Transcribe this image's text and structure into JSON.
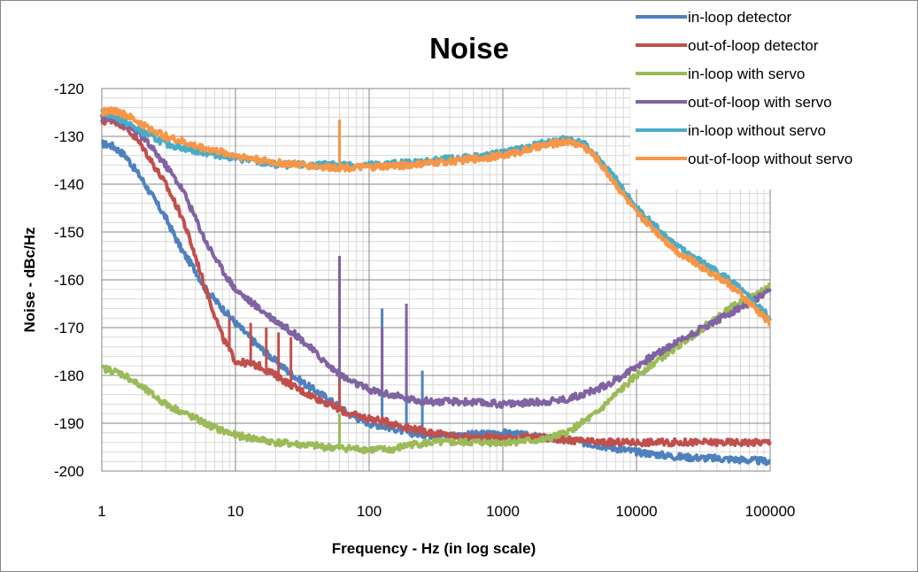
{
  "chart_data": {
    "type": "line",
    "title": "Noise",
    "xlabel": "Frequency - Hz (in log scale)",
    "ylabel": "Noise - dBc/Hz",
    "x_scale": "log",
    "xlim": [
      1,
      100000
    ],
    "ylim": [
      -200,
      -120
    ],
    "x_ticks": [
      1,
      10,
      100,
      1000,
      10000,
      100000
    ],
    "x_tick_labels": [
      "1",
      "10",
      "100",
      "1000",
      "10000",
      "100000"
    ],
    "y_ticks": [
      -200,
      -190,
      -180,
      -170,
      -160,
      -150,
      -140,
      -130,
      -120
    ],
    "y_tick_labels": [
      "-200",
      "-190",
      "-180",
      "-170",
      "-160",
      "-150",
      "-140",
      "-130",
      "-120"
    ],
    "grid": true,
    "minor_grid": true,
    "legend_position": "top-right",
    "series": [
      {
        "name": "in-loop detector",
        "color": "#4f81bd",
        "points": [
          [
            1,
            -131.5
          ],
          [
            1.2,
            -132
          ],
          [
            1.5,
            -134
          ],
          [
            2,
            -139
          ],
          [
            3,
            -147
          ],
          [
            4,
            -154
          ],
          [
            5,
            -158
          ],
          [
            6,
            -162
          ],
          [
            8,
            -166
          ],
          [
            10,
            -169
          ],
          [
            15,
            -174
          ],
          [
            20,
            -177
          ],
          [
            30,
            -181
          ],
          [
            50,
            -185
          ],
          [
            70,
            -188
          ],
          [
            100,
            -190
          ],
          [
            150,
            -191
          ],
          [
            200,
            -192
          ],
          [
            300,
            -192.5
          ],
          [
            500,
            -192.5
          ],
          [
            1000,
            -192
          ],
          [
            2000,
            -193
          ],
          [
            3000,
            -193.5
          ],
          [
            5000,
            -194.5
          ],
          [
            10000,
            -196
          ],
          [
            20000,
            -197
          ],
          [
            50000,
            -197.5
          ],
          [
            100000,
            -198
          ]
        ],
        "spikes": [
          [
            125,
            -166
          ],
          [
            190,
            -168
          ],
          [
            250,
            -179
          ]
        ]
      },
      {
        "name": "out-of-loop detector",
        "color": "#c0504d",
        "points": [
          [
            1,
            -127
          ],
          [
            1.2,
            -126.5
          ],
          [
            1.5,
            -128
          ],
          [
            2,
            -132
          ],
          [
            3,
            -140
          ],
          [
            4,
            -147
          ],
          [
            5,
            -155
          ],
          [
            6,
            -162
          ],
          [
            8,
            -172
          ],
          [
            10,
            -177
          ],
          [
            15,
            -178
          ],
          [
            20,
            -180
          ],
          [
            30,
            -183
          ],
          [
            50,
            -186
          ],
          [
            70,
            -188
          ],
          [
            100,
            -189
          ],
          [
            150,
            -190
          ],
          [
            200,
            -191
          ],
          [
            300,
            -192
          ],
          [
            500,
            -193
          ],
          [
            1000,
            -193
          ],
          [
            2000,
            -193
          ],
          [
            3000,
            -193.5
          ],
          [
            5000,
            -194
          ],
          [
            10000,
            -194
          ],
          [
            20000,
            -194
          ],
          [
            50000,
            -194
          ],
          [
            100000,
            -194
          ]
        ],
        "spikes": [
          [
            9,
            -168
          ],
          [
            13,
            -169
          ],
          [
            17,
            -170
          ],
          [
            21,
            -171
          ],
          [
            26,
            -172
          ],
          [
            60,
            -176
          ]
        ]
      },
      {
        "name": "in-loop with servo",
        "color": "#9bbb59",
        "points": [
          [
            1,
            -178.5
          ],
          [
            1.2,
            -179
          ],
          [
            1.5,
            -180
          ],
          [
            2,
            -182.5
          ],
          [
            3,
            -186
          ],
          [
            5,
            -189
          ],
          [
            7,
            -191
          ],
          [
            10,
            -192.5
          ],
          [
            20,
            -194
          ],
          [
            50,
            -195
          ],
          [
            100,
            -195.5
          ],
          [
            150,
            -195.5
          ],
          [
            200,
            -194.5
          ],
          [
            300,
            -194
          ],
          [
            500,
            -194
          ],
          [
            1000,
            -194
          ],
          [
            2000,
            -193.5
          ],
          [
            3000,
            -192
          ],
          [
            5000,
            -188
          ],
          [
            7000,
            -184
          ],
          [
            10000,
            -180
          ],
          [
            20000,
            -174
          ],
          [
            50000,
            -166
          ],
          [
            100000,
            -161.5
          ]
        ],
        "spikes": [
          [
            60,
            -188
          ]
        ]
      },
      {
        "name": "out-of-loop with servo",
        "color": "#8064a2",
        "points": [
          [
            1,
            -126
          ],
          [
            1.2,
            -126
          ],
          [
            1.5,
            -127.5
          ],
          [
            2,
            -130
          ],
          [
            3,
            -136
          ],
          [
            4,
            -141
          ],
          [
            5,
            -147
          ],
          [
            6,
            -152
          ],
          [
            8,
            -158
          ],
          [
            10,
            -162
          ],
          [
            15,
            -166
          ],
          [
            20,
            -168.5
          ],
          [
            30,
            -172
          ],
          [
            50,
            -178
          ],
          [
            70,
            -181
          ],
          [
            100,
            -183
          ],
          [
            200,
            -185
          ],
          [
            300,
            -185.5
          ],
          [
            500,
            -185.5
          ],
          [
            1000,
            -186
          ],
          [
            2000,
            -185.5
          ],
          [
            3000,
            -185
          ],
          [
            5000,
            -183
          ],
          [
            7000,
            -181
          ],
          [
            10000,
            -178
          ],
          [
            20000,
            -173
          ],
          [
            50000,
            -167
          ],
          [
            100000,
            -162.5
          ]
        ],
        "spikes": [
          [
            60,
            -155
          ],
          [
            125,
            -170
          ],
          [
            190,
            -165
          ]
        ]
      },
      {
        "name": "in-loop without servo",
        "color": "#4bacc6",
        "points": [
          [
            1,
            -125
          ],
          [
            1.2,
            -125.5
          ],
          [
            1.5,
            -127
          ],
          [
            2,
            -129
          ],
          [
            3,
            -131.5
          ],
          [
            5,
            -133
          ],
          [
            10,
            -134.5
          ],
          [
            20,
            -136
          ],
          [
            50,
            -136
          ],
          [
            100,
            -136
          ],
          [
            200,
            -135.5
          ],
          [
            500,
            -134.5
          ],
          [
            1000,
            -133.5
          ],
          [
            2000,
            -131.5
          ],
          [
            3000,
            -130.5
          ],
          [
            4000,
            -131.5
          ],
          [
            5000,
            -134
          ],
          [
            7000,
            -139
          ],
          [
            10000,
            -145
          ],
          [
            20000,
            -153
          ],
          [
            50000,
            -160
          ],
          [
            100000,
            -168
          ]
        ],
        "spikes": []
      },
      {
        "name": "out-of-loop without servo",
        "color": "#f79646",
        "points": [
          [
            1,
            -125
          ],
          [
            1.2,
            -124.5
          ],
          [
            1.5,
            -125.5
          ],
          [
            2,
            -127.5
          ],
          [
            3,
            -130
          ],
          [
            5,
            -132
          ],
          [
            10,
            -134
          ],
          [
            20,
            -135.5
          ],
          [
            50,
            -136.5
          ],
          [
            100,
            -136.5
          ],
          [
            200,
            -136
          ],
          [
            500,
            -135
          ],
          [
            1000,
            -134
          ],
          [
            2000,
            -132
          ],
          [
            3000,
            -131
          ],
          [
            4000,
            -132
          ],
          [
            5000,
            -134.5
          ],
          [
            7000,
            -140
          ],
          [
            10000,
            -146
          ],
          [
            20000,
            -154
          ],
          [
            50000,
            -161
          ],
          [
            100000,
            -169
          ]
        ],
        "spikes": [
          [
            60,
            -126.5
          ]
        ]
      }
    ]
  }
}
